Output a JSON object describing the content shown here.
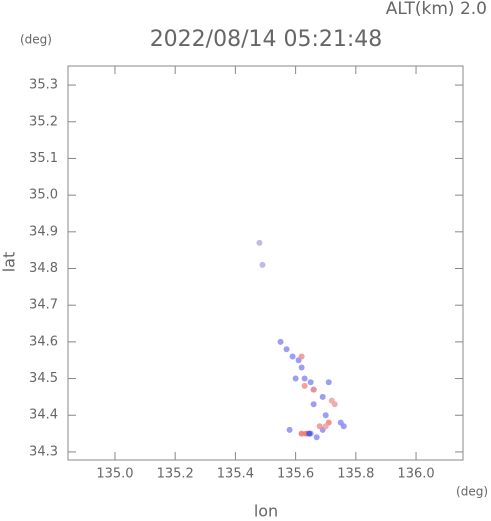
{
  "chart_data": {
    "type": "scatter",
    "title": "2022/08/14 05:21:48",
    "annotation": "ALT(km) 2.0",
    "y_unit": "(deg)",
    "x_unit": "(deg)",
    "x_label": "lon",
    "y_label": "lat",
    "xlim": [
      134.844,
      136.156
    ],
    "ylim": [
      34.278,
      35.352
    ],
    "xticks": [
      {
        "value": 135,
        "label": "135.0"
      },
      135.2,
      135.4,
      135.6,
      135.8,
      {
        "value": 136,
        "label": "136.0"
      }
    ],
    "yticks": [
      34.3,
      34.4,
      34.5,
      34.6,
      34.7,
      34.8,
      34.9,
      {
        "value": 35,
        "label": "35.0"
      },
      35.1,
      35.2,
      35.3
    ],
    "x": [
      135.55,
      135.57,
      135.59,
      135.61,
      135.62,
      135.6,
      135.63,
      135.65,
      135.66,
      135.71,
      135.69,
      135.66,
      135.7,
      135.75,
      135.76,
      135.69,
      135.58,
      135.65,
      135.67,
      135.48,
      135.49,
      135.62,
      135.63,
      135.66,
      135.72,
      135.73,
      135.68,
      135.71,
      135.62,
      135.635,
      135.7,
      135.645
    ],
    "y": [
      34.6,
      34.58,
      34.56,
      34.55,
      34.53,
      34.5,
      34.5,
      34.49,
      34.47,
      34.49,
      34.45,
      34.43,
      34.4,
      34.38,
      34.37,
      34.36,
      34.36,
      34.35,
      34.34,
      34.87,
      34.81,
      34.56,
      34.48,
      34.47,
      34.44,
      34.43,
      34.37,
      34.38,
      34.35,
      34.35,
      34.37,
      34.35
    ],
    "colors": [
      "#8c8cf0",
      "#8c8cf0",
      "#8c8cf0",
      "#8c8cf0",
      "#8c8cf0",
      "#8c8cf0",
      "#8c8cf0",
      "#8c8cf0",
      "#8c8cf0",
      "#8c8cf0",
      "#8c8cf0",
      "#8c8cf0",
      "#8c8cf0",
      "#8c8cf0",
      "#8c8cf0",
      "#8c8cf0",
      "#8c8cf0",
      "#8c8cf0",
      "#8c8cf0",
      "#b0b0e0",
      "#b0b0e0",
      "#f09090",
      "#f09090",
      "#f09090",
      "#f0a0a0",
      "#f0a0a0",
      "#f09090",
      "#f08080",
      "#f07070",
      "#f07070",
      "#f0a0a0",
      "#4455dd"
    ]
  }
}
